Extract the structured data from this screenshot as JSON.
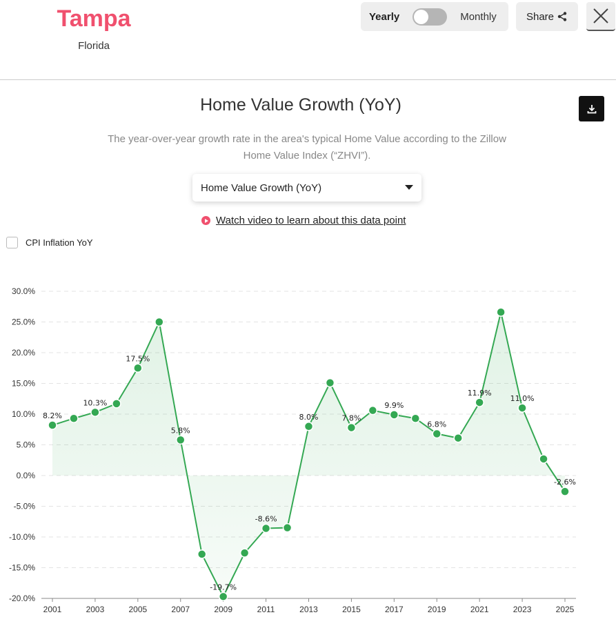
{
  "header": {
    "city": "Tampa",
    "state": "Florida",
    "toggle_left": "Yearly",
    "toggle_right": "Monthly",
    "toggle_state": "yearly",
    "share_label": "Share"
  },
  "main": {
    "title": "Home Value Growth (YoY)",
    "subtitle": "The year-over-year growth rate in the area's typical Home Value according to the Zillow Home Value Index (“ZHVI”).",
    "selector_value": "Home Value Growth (YoY)",
    "video_link": "Watch video to learn about this data point",
    "cpi_label": "CPI Inflation YoY",
    "cpi_checked": false
  },
  "colors": {
    "accent": "#f0506e",
    "line": "#34a853"
  },
  "chart_data": {
    "type": "area",
    "x": [
      2001,
      2002,
      2003,
      2004,
      2005,
      2006,
      2007,
      2008,
      2009,
      2010,
      2011,
      2012,
      2013,
      2014,
      2015,
      2016,
      2017,
      2018,
      2019,
      2020,
      2021,
      2022,
      2023,
      2024,
      2025
    ],
    "values": [
      8.2,
      9.3,
      10.3,
      11.7,
      17.5,
      25.0,
      5.8,
      -12.8,
      -19.7,
      -12.6,
      -8.6,
      -8.5,
      8.0,
      15.1,
      7.8,
      10.6,
      9.9,
      9.3,
      6.8,
      6.1,
      11.9,
      26.6,
      11.0,
      2.7,
      -2.6
    ],
    "data_labels": [
      "8.2%",
      "",
      "10.3%",
      "",
      "17.5%",
      "",
      "5.8%",
      "",
      "-19.7%",
      "",
      "-8.6%",
      "",
      "8.0%",
      "",
      "7.8%",
      "",
      "9.9%",
      "",
      "6.8%",
      "",
      "11.9%",
      "",
      "11.0%",
      "",
      "-2.6%"
    ],
    "yticks": [
      "30.0%",
      "25.0%",
      "20.0%",
      "15.0%",
      "10.0%",
      "5.0%",
      "0.0%",
      "-5.0%",
      "-10.0%",
      "-15.0%",
      "-20.0%"
    ],
    "ytick_values": [
      30,
      25,
      20,
      15,
      10,
      5,
      0,
      -5,
      -10,
      -15,
      -20
    ],
    "xticks": [
      "2001",
      "2003",
      "2005",
      "2007",
      "2009",
      "2011",
      "2013",
      "2015",
      "2017",
      "2019",
      "2021",
      "2023",
      "2025"
    ],
    "ylim": [
      -20,
      30
    ],
    "grid": true,
    "title": "",
    "xlabel": "",
    "ylabel": ""
  }
}
